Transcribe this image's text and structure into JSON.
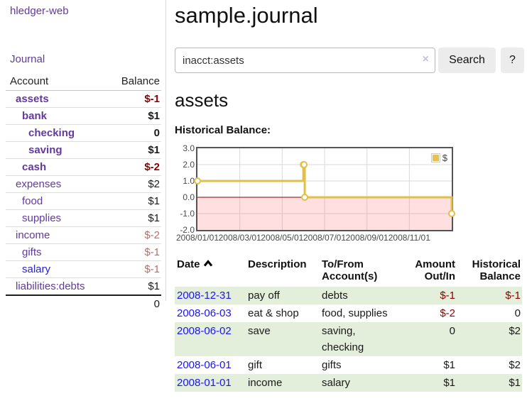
{
  "app": {
    "brand": "hledger-web",
    "nav": {
      "journal": "Journal"
    }
  },
  "sidebar": {
    "columns": {
      "account": "Account",
      "balance": "Balance"
    },
    "accounts": [
      {
        "name": "assets",
        "depth": 1,
        "bold": true,
        "balance": "$-1",
        "negative": true,
        "blue_link": false
      },
      {
        "name": "bank",
        "depth": 2,
        "bold": true,
        "balance": "$1",
        "negative": false,
        "blue_link": false
      },
      {
        "name": "checking",
        "depth": 3,
        "bold": true,
        "balance": "0",
        "negative": false,
        "blue_link": false
      },
      {
        "name": "saving",
        "depth": 3,
        "bold": true,
        "balance": "$1",
        "negative": false,
        "blue_link": false
      },
      {
        "name": "cash",
        "depth": 2,
        "bold": true,
        "balance": "$-2",
        "negative": true,
        "blue_link": false
      },
      {
        "name": "expenses",
        "depth": 1,
        "bold": false,
        "balance": "$2",
        "negative": false,
        "blue_link": false
      },
      {
        "name": "food",
        "depth": 2,
        "bold": false,
        "balance": "$1",
        "negative": false,
        "blue_link": false
      },
      {
        "name": "supplies",
        "depth": 2,
        "bold": false,
        "balance": "$1",
        "negative": false,
        "blue_link": false
      },
      {
        "name": "income",
        "depth": 1,
        "bold": false,
        "balance": "$-2",
        "negative": true,
        "blue_link": false
      },
      {
        "name": "gifts",
        "depth": 2,
        "bold": false,
        "balance": "$-1",
        "negative": true,
        "blue_link": false
      },
      {
        "name": "salary",
        "depth": 2,
        "bold": false,
        "balance": "$-1",
        "negative": true,
        "blue_link": true
      },
      {
        "name": "liabilities:debts",
        "depth": 1,
        "bold": false,
        "balance": "$1",
        "negative": false,
        "blue_link": false
      }
    ],
    "total": "0"
  },
  "header": {
    "title": "sample.journal"
  },
  "search": {
    "value": "inacct:assets",
    "clear_icon": "×",
    "button": "Search",
    "help_button": "?"
  },
  "account_page": {
    "heading": "assets",
    "chart_label": "Historical Balance:"
  },
  "chart_data": {
    "type": "line",
    "title": "Historical Balance",
    "step": true,
    "series": [
      {
        "name": "$",
        "points": [
          {
            "date": "2008-01-01",
            "value": 1
          },
          {
            "date": "2008-06-01",
            "value": 2
          },
          {
            "date": "2008-06-02",
            "value": 2
          },
          {
            "date": "2008-06-03",
            "value": 0
          },
          {
            "date": "2008-12-31",
            "value": -1
          }
        ]
      }
    ],
    "ylim": [
      -2,
      3
    ],
    "yticks": [
      "3.0",
      "2.0",
      "1.0",
      "0.0",
      "-1.0",
      "-2.0"
    ],
    "xticks": [
      "2008/01/01",
      "2008/03/01",
      "2008/05/01",
      "2008/07/01",
      "2008/09/01",
      "2008/11/01"
    ],
    "grid": true,
    "negative_region_shaded": true,
    "zero_line": true,
    "legend": {
      "label": "$",
      "position": "top-right"
    },
    "colors": {
      "line": "#e0bf4a",
      "marker_fill": "#ffffff",
      "negative_fill": "#fbdbdb",
      "zero_line": "#8b0000"
    }
  },
  "register": {
    "headers": [
      {
        "line1": "Date",
        "line2": "",
        "align": "left",
        "sorted": "ascending"
      },
      {
        "line1": "Description",
        "line2": "",
        "align": "left",
        "sorted": null
      },
      {
        "line1": "To/From",
        "line2": "Account(s)",
        "align": "left",
        "sorted": null
      },
      {
        "line1": "Amount",
        "line2": "Out/In",
        "align": "right",
        "sorted": null
      },
      {
        "line1": "Historical",
        "line2": "Balance",
        "align": "right",
        "sorted": null
      }
    ],
    "rows": [
      {
        "date": "2008-12-31",
        "description": "pay off",
        "accounts": "debts",
        "amount": "$-1",
        "amount_negative": true,
        "balance": "$-1",
        "balance_negative": true,
        "shaded": true
      },
      {
        "date": "2008-06-03",
        "description": "eat & shop",
        "accounts": "food, supplies",
        "amount": "$-2",
        "amount_negative": true,
        "balance": "0",
        "balance_negative": false,
        "shaded": false
      },
      {
        "date": "2008-06-02",
        "description": "save",
        "accounts": "saving, checking",
        "amount": "0",
        "amount_negative": false,
        "balance": "$2",
        "balance_negative": false,
        "shaded": true
      },
      {
        "date": "2008-06-01",
        "description": "gift",
        "accounts": "gifts",
        "amount": "$1",
        "amount_negative": false,
        "balance": "$2",
        "balance_negative": false,
        "shaded": false
      },
      {
        "date": "2008-01-01",
        "description": "income",
        "accounts": "salary",
        "amount": "$1",
        "amount_negative": false,
        "balance": "$1",
        "balance_negative": false,
        "shaded": true
      }
    ]
  }
}
